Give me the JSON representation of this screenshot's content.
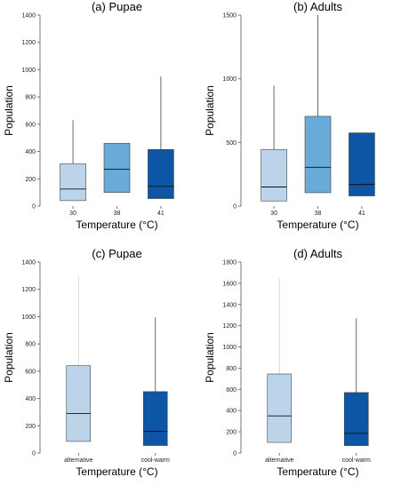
{
  "chart_data": [
    {
      "type": "boxplot",
      "title": "(a) Pupae",
      "xlabel": "Temperature (°C)",
      "ylabel": "Population",
      "ylim": [
        0,
        1400
      ],
      "yticks": [
        "0",
        "200",
        "400",
        "600",
        "800",
        "1000",
        "1200",
        "1400"
      ],
      "categories": [
        "30",
        "38",
        "41"
      ],
      "boxes": [
        {
          "category": "30",
          "min": 40,
          "q1": 40,
          "median": 125,
          "q3": 310,
          "max": 630,
          "color": "#bcd4ea"
        },
        {
          "category": "38",
          "min": 100,
          "q1": 100,
          "median": 270,
          "q3": 460,
          "max": 460,
          "color": "#6aaad6"
        },
        {
          "category": "41",
          "min": 55,
          "q1": 55,
          "median": 145,
          "q3": 415,
          "max": 950,
          "color": "#0d55a5"
        }
      ]
    },
    {
      "type": "boxplot",
      "title": "(b) Adults",
      "xlabel": "Temperature (°C)",
      "ylabel": "Population",
      "ylim": [
        0,
        1500
      ],
      "yticks": [
        "0",
        "500",
        "1000",
        "1500"
      ],
      "categories": [
        "30",
        "38",
        "41"
      ],
      "boxes": [
        {
          "category": "30",
          "min": 40,
          "q1": 40,
          "median": 150,
          "q3": 445,
          "max": 945,
          "color": "#bcd4ea"
        },
        {
          "category": "38",
          "min": 105,
          "q1": 105,
          "median": 305,
          "q3": 705,
          "max": 1500,
          "color": "#6aaad6"
        },
        {
          "category": "41",
          "min": 80,
          "q1": 80,
          "median": 170,
          "q3": 575,
          "max": 575,
          "color": "#0d55a5"
        }
      ]
    },
    {
      "type": "boxplot",
      "title": "(c) Pupae",
      "xlabel": "Temperature (°C)",
      "ylabel": "Population",
      "ylim": [
        0,
        1400
      ],
      "yticks": [
        "0",
        "200",
        "400",
        "600",
        "800",
        "1000",
        "1200",
        "1400"
      ],
      "categories": [
        "alternative",
        "cool-warm"
      ],
      "boxes": [
        {
          "category": "alternative",
          "min": 85,
          "q1": 85,
          "median": 290,
          "q3": 640,
          "max": 1300,
          "color": "#bcd4ea"
        },
        {
          "category": "cool-warm",
          "min": 55,
          "q1": 55,
          "median": 160,
          "q3": 450,
          "max": 995,
          "color": "#0d55a5"
        }
      ]
    },
    {
      "type": "boxplot",
      "title": "(d) Adults",
      "xlabel": "Temperature (°C)",
      "ylabel": "Population",
      "ylim": [
        0,
        1800
      ],
      "yticks": [
        "0",
        "200",
        "400",
        "600",
        "800",
        "1000",
        "1200",
        "1400",
        "1600",
        "1800"
      ],
      "categories": [
        "alternative",
        "cool-warm"
      ],
      "boxes": [
        {
          "category": "alternative",
          "min": 100,
          "q1": 100,
          "median": 350,
          "q3": 745,
          "max": 1650,
          "color": "#bcd4ea"
        },
        {
          "category": "cool-warm",
          "min": 70,
          "q1": 70,
          "median": 185,
          "q3": 570,
          "max": 1270,
          "color": "#0d55a5"
        }
      ]
    }
  ]
}
